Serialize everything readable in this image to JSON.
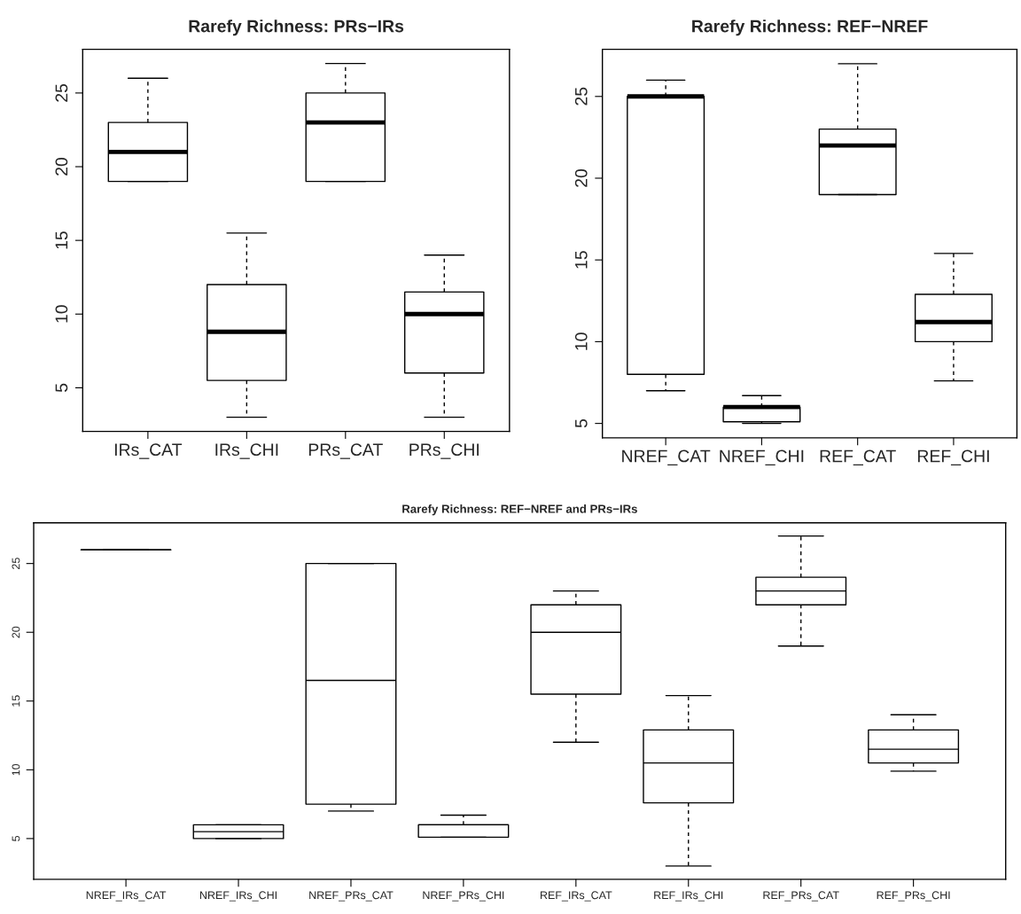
{
  "chart_data": [
    {
      "type": "box",
      "title": "Rarefy Richness: PRs−IRs",
      "categories": [
        "IRs_CAT",
        "IRs_CHI",
        "PRs_CAT",
        "PRs_CHI"
      ],
      "ylim": [
        2.04,
        27.96
      ],
      "yticks": [
        5,
        10,
        15,
        20,
        25
      ],
      "boxes": [
        {
          "low": 19,
          "q1": 19,
          "median": 21,
          "q3": 23,
          "high": 26
        },
        {
          "low": 3,
          "q1": 5.5,
          "median": 8.8,
          "q3": 12,
          "high": 15.5
        },
        {
          "low": 19,
          "q1": 19,
          "median": 23,
          "q3": 25,
          "high": 27
        },
        {
          "low": 3,
          "q1": 6,
          "median": 10,
          "q3": 11.5,
          "high": 14
        }
      ]
    },
    {
      "type": "box",
      "title": "Rarefy Richness: REF−NREF",
      "categories": [
        "NREF_CAT",
        "NREF_CHI",
        "REF_CAT",
        "REF_CHI"
      ],
      "ylim": [
        4.12,
        27.88
      ],
      "yticks": [
        5,
        10,
        15,
        20,
        25
      ],
      "boxes": [
        {
          "low": 7,
          "q1": 8,
          "median": 25,
          "q3": 25,
          "high": 26
        },
        {
          "low": 5,
          "q1": 5.1,
          "median": 6,
          "q3": 6,
          "high": 6.7
        },
        {
          "low": 19,
          "q1": 19,
          "median": 22,
          "q3": 23,
          "high": 27
        },
        {
          "low": 7.6,
          "q1": 10,
          "median": 11.2,
          "q3": 12.9,
          "high": 15.4
        }
      ]
    },
    {
      "type": "box",
      "title": "Rarefy Richness: REF−NREF and PRs−IRs",
      "categories": [
        "NREF_IRs_CAT",
        "NREF_IRs_CHI",
        "NREF_PRs_CAT",
        "NREF_PRs_CHI",
        "REF_IRs_CAT",
        "REF_IRs_CHI",
        "REF_PRs_CAT",
        "REF_PRs_CHI"
      ],
      "ylim": [
        2.04,
        27.96
      ],
      "yticks": [
        5,
        10,
        15,
        20,
        25
      ],
      "boxes": [
        {
          "low": 26,
          "q1": 26,
          "median": 26,
          "q3": 26,
          "high": 26
        },
        {
          "low": 5,
          "q1": 5,
          "median": 5.5,
          "q3": 6,
          "high": 6
        },
        {
          "low": 7,
          "q1": 7.5,
          "median": 16.5,
          "q3": 25,
          "high": 25
        },
        {
          "low": 5.1,
          "q1": 5.1,
          "median": 6,
          "q3": 6,
          "high": 6.7
        },
        {
          "low": 12,
          "q1": 15.5,
          "median": 20,
          "q3": 22,
          "high": 23
        },
        {
          "low": 3,
          "q1": 7.6,
          "median": 10.5,
          "q3": 12.9,
          "high": 15.4
        },
        {
          "low": 19,
          "q1": 22,
          "median": 23,
          "q3": 24,
          "high": 27
        },
        {
          "low": 9.9,
          "q1": 10.5,
          "median": 11.5,
          "q3": 12.9,
          "high": 14
        }
      ]
    }
  ]
}
